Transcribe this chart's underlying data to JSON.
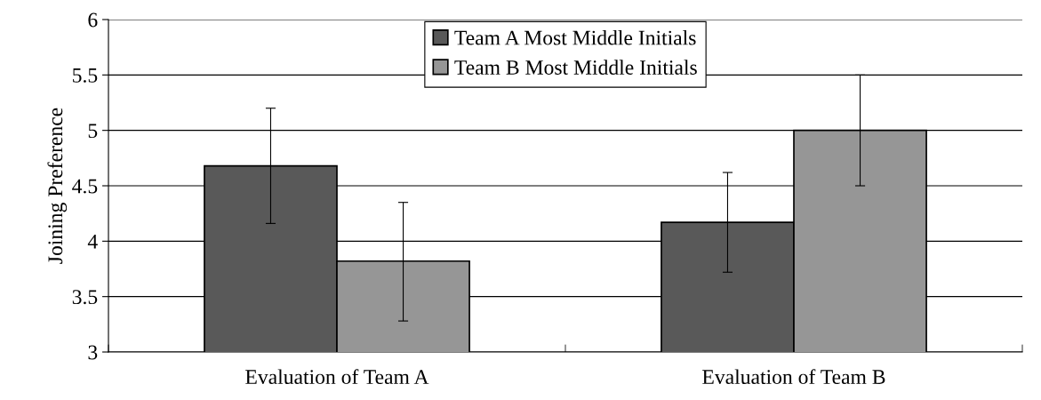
{
  "chart_data": {
    "type": "bar",
    "ylabel": "Joining Preference",
    "categories": [
      "Evaluation of Team A",
      "Evaluation of Team B"
    ],
    "series": [
      {
        "name": "Team A Most Middle Initials",
        "color": "#595959",
        "values": [
          4.68,
          4.17
        ],
        "errors": [
          [
            4.16,
            5.2
          ],
          [
            3.72,
            4.62
          ]
        ]
      },
      {
        "name": "Team B Most Middle Initials",
        "color": "#969696",
        "values": [
          3.82,
          5.0
        ],
        "errors": [
          [
            3.28,
            4.35
          ],
          [
            4.5,
            5.5
          ]
        ]
      }
    ],
    "ylim": [
      3,
      6
    ],
    "yticks": [
      3,
      3.5,
      4,
      4.5,
      5,
      5.5,
      6
    ],
    "grid": "y",
    "legend": "top"
  }
}
